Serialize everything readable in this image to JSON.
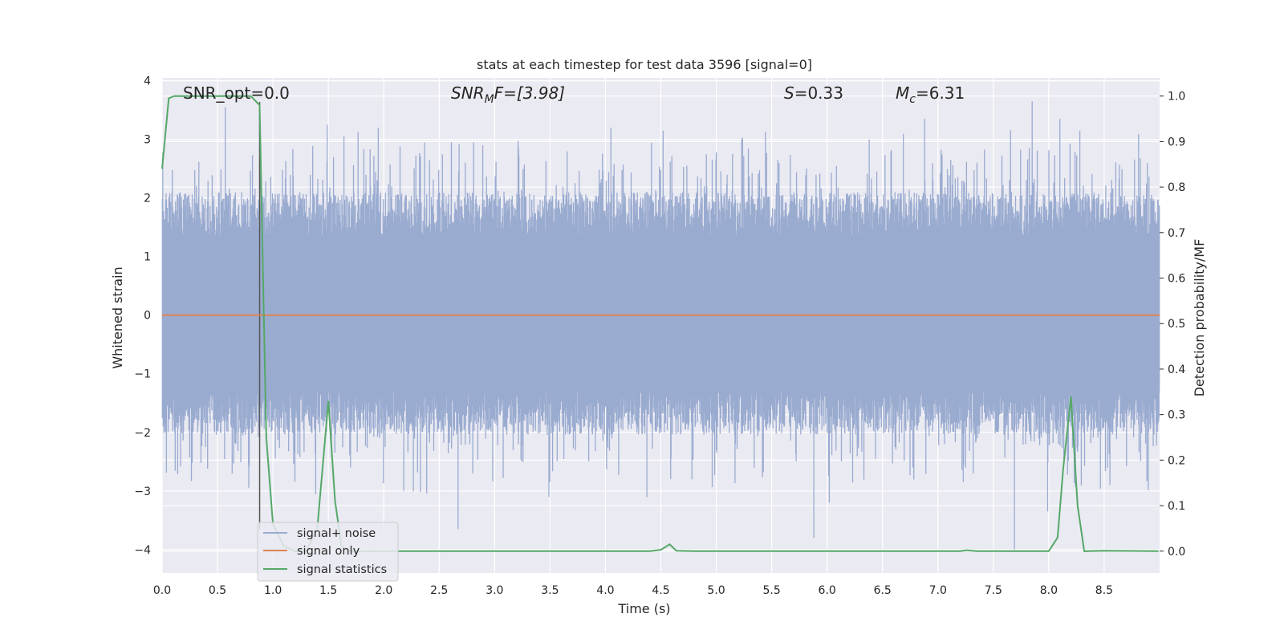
{
  "chart_data": {
    "type": "line",
    "title": "stats at each timestep for test data 3596 [signal=0]",
    "xlabel": "Time (s)",
    "ylabel": "Whitened strain",
    "ylabel_right": "Detection probability/MF",
    "xlim": [
      0.0,
      9.0
    ],
    "ylim": [
      -4.4,
      4.05
    ],
    "ylim_right": [
      -0.048,
      1.04
    ],
    "x_ticks": [
      "0.0",
      "0.5",
      "1.0",
      "1.5",
      "2.0",
      "2.5",
      "3.0",
      "3.5",
      "4.0",
      "4.5",
      "5.0",
      "5.5",
      "6.0",
      "6.5",
      "7.0",
      "7.5",
      "8.0",
      "8.5"
    ],
    "y_ticks": [
      {
        "value": 4,
        "label": "4"
      },
      {
        "value": 3,
        "label": "3"
      },
      {
        "value": 2,
        "label": "2"
      },
      {
        "value": 1,
        "label": "1"
      },
      {
        "value": 0,
        "label": "0"
      },
      {
        "value": -1,
        "label": "−1"
      },
      {
        "value": -2,
        "label": "−2"
      },
      {
        "value": -3,
        "label": "−3"
      },
      {
        "value": -4,
        "label": "−4"
      }
    ],
    "y_ticks_right": [
      "0.0",
      "0.1",
      "0.2",
      "0.3",
      "0.4",
      "0.5",
      "0.6",
      "0.7",
      "0.8",
      "0.9",
      "1.0"
    ],
    "grid": true,
    "legend_position": "lower-left",
    "annotations": {
      "snr_opt": "SNR_opt=0.0",
      "snr_mf_label": "SNR",
      "snr_mf_sub": "M",
      "snr_mf_value": "F=[3.98]",
      "s_label": "S",
      "s_value": "=0.33",
      "mc_label": "M",
      "mc_sub": "c",
      "mc_value": "=6.31"
    },
    "marker_time": 0.88,
    "series": [
      {
        "name": "signal+ noise",
        "axis": "left",
        "color": "#9aabd0",
        "description_kind": "noise",
        "envelope": {
          "upper_typical": 1.75,
          "lower_typical": -1.7,
          "upper_max": 3.65,
          "lower_min": -3.85
        },
        "spikes": [
          {
            "x": 0.57,
            "y": 3.55
          },
          {
            "x": 0.88,
            "y": 3.4
          },
          {
            "x": 1.49,
            "y": 3.25
          },
          {
            "x": 1.95,
            "y": 3.2
          },
          {
            "x": 2.61,
            "y": 2.95
          },
          {
            "x": 2.67,
            "y": -3.65
          },
          {
            "x": 3.49,
            "y": -3.1
          },
          {
            "x": 4.05,
            "y": 3.2
          },
          {
            "x": 4.52,
            "y": 3.15
          },
          {
            "x": 5.23,
            "y": 3.0
          },
          {
            "x": 5.88,
            "y": -3.8
          },
          {
            "x": 6.38,
            "y": 3.0
          },
          {
            "x": 6.88,
            "y": 3.35
          },
          {
            "x": 7.69,
            "y": -4.0
          },
          {
            "x": 7.85,
            "y": 3.65
          },
          {
            "x": 7.99,
            "y": -3.35
          },
          {
            "x": 8.1,
            "y": 3.35
          },
          {
            "x": 8.28,
            "y": 3.15
          },
          {
            "x": 0.78,
            "y": -2.55
          },
          {
            "x": 1.7,
            "y": -2.6
          },
          {
            "x": 2.18,
            "y": -3.0
          },
          {
            "x": 4.78,
            "y": -2.8
          },
          {
            "x": 6.02,
            "y": -3.2
          },
          {
            "x": 7.25,
            "y": -2.6
          }
        ]
      },
      {
        "name": "signal only",
        "axis": "left",
        "color": "#dd8452",
        "x": [
          0.0,
          9.0
        ],
        "y": [
          0.0,
          0.0
        ]
      },
      {
        "name": "signal statistics",
        "axis": "right",
        "color": "#55a868",
        "x": [
          0.0,
          0.06,
          0.11,
          0.2,
          0.35,
          0.5,
          0.7,
          0.8,
          0.88,
          0.94,
          1.0,
          1.1,
          1.2,
          1.3,
          1.4,
          1.5,
          1.56,
          1.62,
          1.7,
          2.0,
          2.5,
          3.0,
          3.5,
          4.0,
          4.4,
          4.5,
          4.58,
          4.64,
          4.8,
          5.0,
          6.0,
          7.0,
          7.2,
          7.26,
          7.35,
          7.5,
          8.0,
          8.08,
          8.13,
          8.2,
          8.26,
          8.32,
          8.5,
          8.99
        ],
        "y": [
          0.84,
          0.995,
          1.0,
          1.0,
          1.0,
          1.0,
          1.0,
          1.0,
          0.98,
          0.25,
          0.06,
          0.01,
          0.0,
          0.0,
          0.05,
          0.33,
          0.11,
          0.01,
          0.0,
          0.0,
          0.0,
          0.0,
          0.0,
          0.0,
          0.0,
          0.003,
          0.015,
          0.001,
          0.0,
          0.0,
          0.0,
          0.0,
          0.0,
          0.002,
          0.0,
          0.0,
          0.0,
          0.03,
          0.18,
          0.34,
          0.1,
          0.0,
          0.001,
          0.0
        ]
      }
    ]
  }
}
